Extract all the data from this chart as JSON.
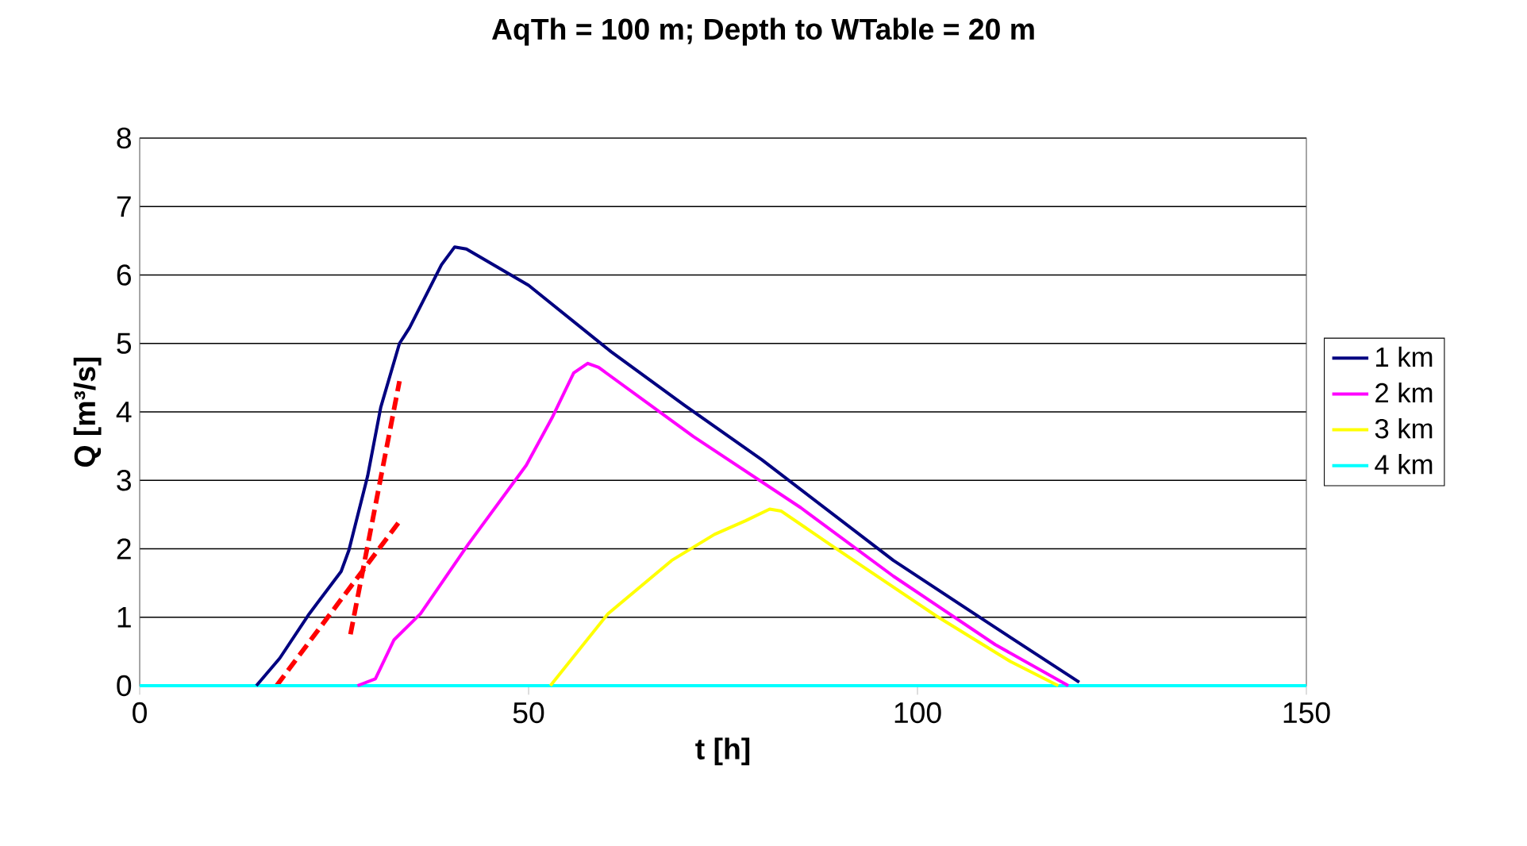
{
  "chart_data": {
    "type": "line",
    "title": "AqTh = 100 m; Depth to WTable = 20 m",
    "xlabel": "t [h]",
    "ylabel": "Q [m³/s]",
    "xlim": [
      0,
      150
    ],
    "xticks": [
      0,
      50,
      100,
      150
    ],
    "ylim": [
      0,
      8
    ],
    "yticks": [
      0,
      1,
      2,
      3,
      4,
      5,
      6,
      7,
      8
    ],
    "grid": "y",
    "legend": "right",
    "marker": "none",
    "line_style": "solid",
    "series": [
      {
        "name": "1 km",
        "color": "#000080",
        "x": [
          15,
          18,
          21.8,
          25.9,
          26.9,
          29.3,
          31.0,
          33.4,
          34.7,
          38.8,
          40.5,
          42,
          50,
          60.6,
          70,
          80,
          96.9,
          110,
          120.8
        ],
        "values": [
          0,
          0.4,
          1.05,
          1.67,
          1.98,
          3.06,
          4.07,
          5.0,
          5.23,
          6.15,
          6.41,
          6.38,
          5.85,
          4.88,
          4.1,
          3.3,
          1.83,
          0.85,
          0.05
        ]
      },
      {
        "name": "2 km",
        "color": "#ff00ff",
        "x": [
          28,
          30.3,
          32.7,
          36.1,
          42.2,
          49.7,
          53.0,
          55.8,
          57.6,
          59,
          71.2,
          85,
          96.9,
          110,
          119.4
        ],
        "values": [
          0,
          0.1,
          0.67,
          1.05,
          2.06,
          3.22,
          3.91,
          4.57,
          4.71,
          4.65,
          3.64,
          2.6,
          1.6,
          0.6,
          0
        ]
      },
      {
        "name": "3 km",
        "color": "#ffff00",
        "x": [
          52.8,
          60.2,
          68.4,
          73.9,
          77.9,
          81.0,
          82.5,
          88.8,
          102.4,
          112,
          118.1
        ],
        "values": [
          0,
          1.05,
          1.83,
          2.21,
          2.41,
          2.58,
          2.55,
          2.06,
          1.02,
          0.35,
          0
        ]
      },
      {
        "name": "4 km",
        "color": "#00ffff",
        "x": [
          0,
          150
        ],
        "values": [
          0,
          0
        ]
      },
      {
        "color": "#ff0000",
        "line_style": "dashed",
        "x": [
          17.6,
          33.4
        ],
        "values": [
          0,
          2.4
        ]
      },
      {
        "color": "#ff0000",
        "line_style": "dashed",
        "x": [
          27.1,
          33.4
        ],
        "values": [
          0.75,
          4.45
        ]
      }
    ]
  }
}
